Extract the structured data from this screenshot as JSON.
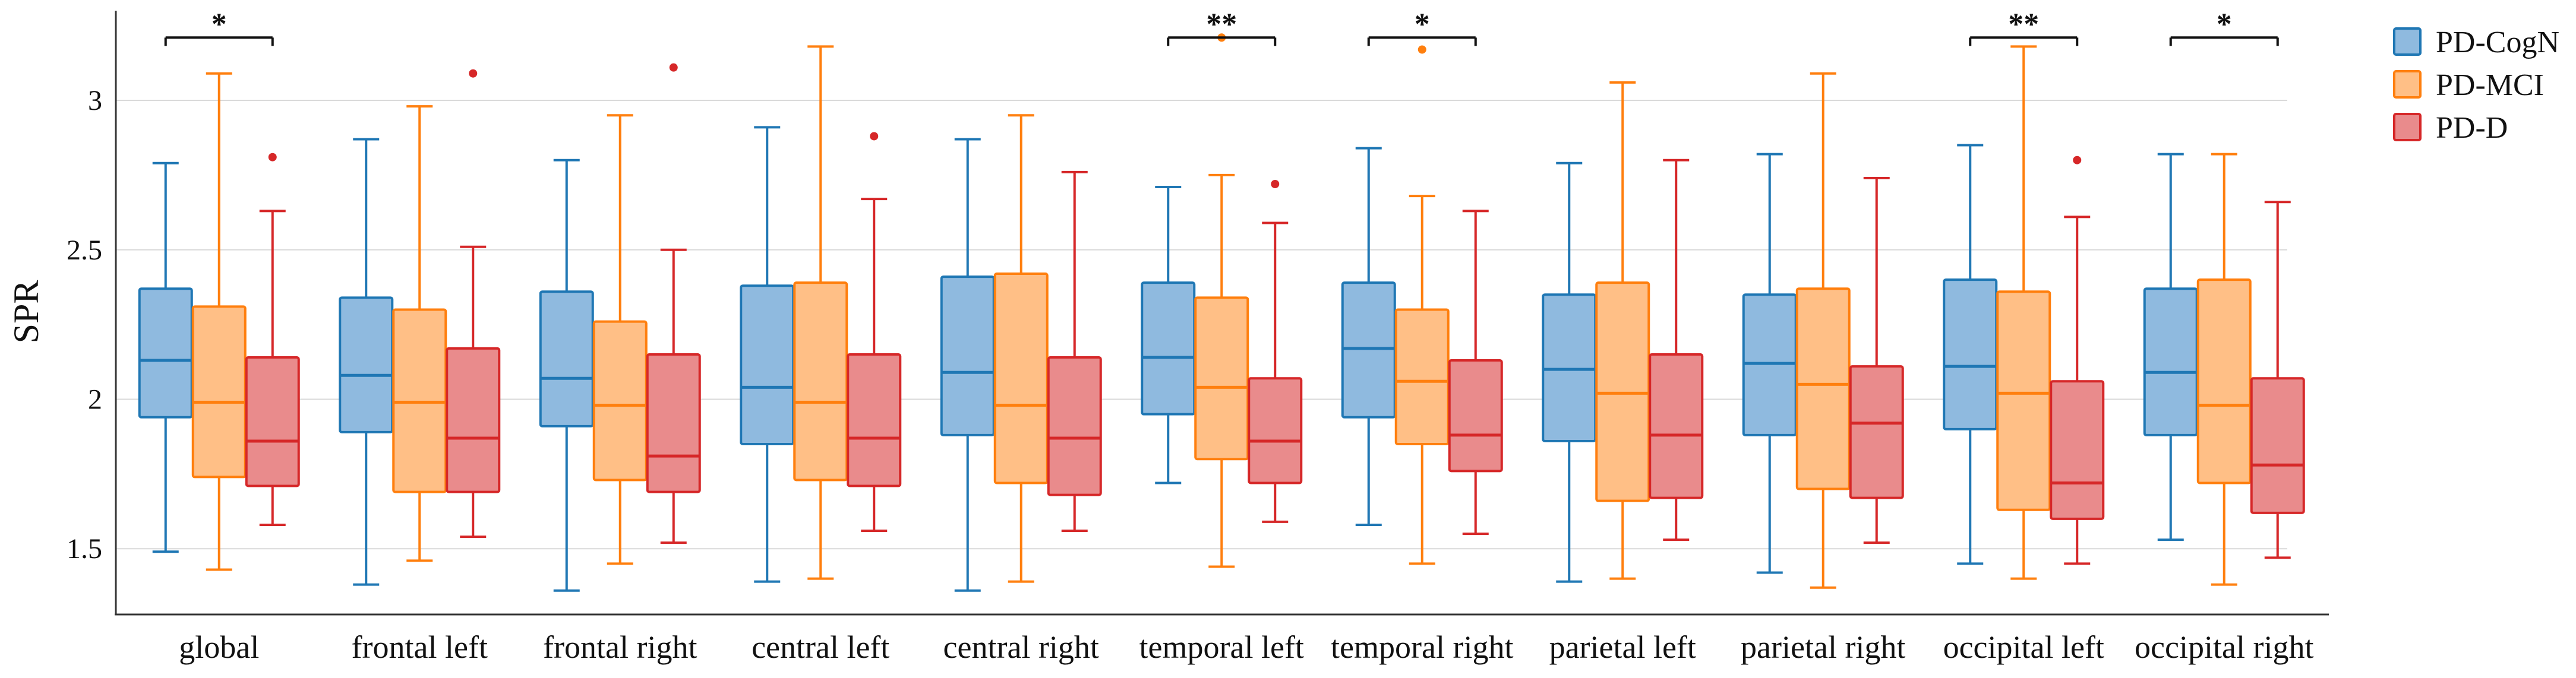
{
  "chart_data": {
    "type": "box",
    "title": "",
    "xlabel": "",
    "ylabel": "SPR",
    "ylim": [
      1.28,
      3.3
    ],
    "yticks": [
      1.5,
      2,
      2.5,
      3
    ],
    "ytick_labels": [
      "1.5",
      "2",
      "2.5",
      "3"
    ],
    "grid": "horizontal",
    "legend_position": "top-right",
    "categories": [
      "global",
      "frontal left",
      "frontal right",
      "central left",
      "central right",
      "temporal left",
      "temporal right",
      "parietal left",
      "parietal right",
      "occipital left",
      "occipital right"
    ],
    "series": [
      {
        "name": "PD-CogN",
        "color": "#1f77b4",
        "fill": "#8fbadf",
        "boxes": [
          {
            "whisker_low": 1.49,
            "q1": 1.94,
            "median": 2.13,
            "q3": 2.37,
            "whisker_high": 2.79,
            "outliers": []
          },
          {
            "whisker_low": 1.38,
            "q1": 1.89,
            "median": 2.08,
            "q3": 2.34,
            "whisker_high": 2.87,
            "outliers": []
          },
          {
            "whisker_low": 1.36,
            "q1": 1.91,
            "median": 2.07,
            "q3": 2.36,
            "whisker_high": 2.8,
            "outliers": []
          },
          {
            "whisker_low": 1.39,
            "q1": 1.85,
            "median": 2.04,
            "q3": 2.38,
            "whisker_high": 2.91,
            "outliers": []
          },
          {
            "whisker_low": 1.36,
            "q1": 1.88,
            "median": 2.09,
            "q3": 2.41,
            "whisker_high": 2.87,
            "outliers": []
          },
          {
            "whisker_low": 1.72,
            "q1": 1.95,
            "median": 2.14,
            "q3": 2.39,
            "whisker_high": 2.71,
            "outliers": []
          },
          {
            "whisker_low": 1.58,
            "q1": 1.94,
            "median": 2.17,
            "q3": 2.39,
            "whisker_high": 2.84,
            "outliers": []
          },
          {
            "whisker_low": 1.39,
            "q1": 1.86,
            "median": 2.1,
            "q3": 2.35,
            "whisker_high": 2.79,
            "outliers": []
          },
          {
            "whisker_low": 1.42,
            "q1": 1.88,
            "median": 2.12,
            "q3": 2.35,
            "whisker_high": 2.82,
            "outliers": []
          },
          {
            "whisker_low": 1.45,
            "q1": 1.9,
            "median": 2.11,
            "q3": 2.4,
            "whisker_high": 2.85,
            "outliers": []
          },
          {
            "whisker_low": 1.53,
            "q1": 1.88,
            "median": 2.09,
            "q3": 2.37,
            "whisker_high": 2.82,
            "outliers": []
          }
        ]
      },
      {
        "name": "PD-MCI",
        "color": "#ff7f0e",
        "fill": "#ffbf86",
        "boxes": [
          {
            "whisker_low": 1.43,
            "q1": 1.74,
            "median": 1.99,
            "q3": 2.31,
            "whisker_high": 3.09,
            "outliers": []
          },
          {
            "whisker_low": 1.46,
            "q1": 1.69,
            "median": 1.99,
            "q3": 2.3,
            "whisker_high": 2.98,
            "outliers": []
          },
          {
            "whisker_low": 1.45,
            "q1": 1.73,
            "median": 1.98,
            "q3": 2.26,
            "whisker_high": 2.95,
            "outliers": []
          },
          {
            "whisker_low": 1.4,
            "q1": 1.73,
            "median": 1.99,
            "q3": 2.39,
            "whisker_high": 3.18,
            "outliers": []
          },
          {
            "whisker_low": 1.39,
            "q1": 1.72,
            "median": 1.98,
            "q3": 2.42,
            "whisker_high": 2.95,
            "outliers": []
          },
          {
            "whisker_low": 1.44,
            "q1": 1.8,
            "median": 2.04,
            "q3": 2.34,
            "whisker_high": 2.75,
            "outliers": [
              3.21
            ]
          },
          {
            "whisker_low": 1.45,
            "q1": 1.85,
            "median": 2.06,
            "q3": 2.3,
            "whisker_high": 2.68,
            "outliers": [
              3.17
            ]
          },
          {
            "whisker_low": 1.4,
            "q1": 1.66,
            "median": 2.02,
            "q3": 2.39,
            "whisker_high": 3.06,
            "outliers": []
          },
          {
            "whisker_low": 1.37,
            "q1": 1.7,
            "median": 2.05,
            "q3": 2.37,
            "whisker_high": 3.09,
            "outliers": []
          },
          {
            "whisker_low": 1.4,
            "q1": 1.63,
            "median": 2.02,
            "q3": 2.36,
            "whisker_high": 3.18,
            "outliers": []
          },
          {
            "whisker_low": 1.38,
            "q1": 1.72,
            "median": 1.98,
            "q3": 2.4,
            "whisker_high": 2.82,
            "outliers": []
          }
        ]
      },
      {
        "name": "PD-D",
        "color": "#d62728",
        "fill": "#e98b8c",
        "boxes": [
          {
            "whisker_low": 1.58,
            "q1": 1.71,
            "median": 1.86,
            "q3": 2.14,
            "whisker_high": 2.63,
            "outliers": [
              2.81
            ]
          },
          {
            "whisker_low": 1.54,
            "q1": 1.69,
            "median": 1.87,
            "q3": 2.17,
            "whisker_high": 2.51,
            "outliers": [
              3.09
            ]
          },
          {
            "whisker_low": 1.52,
            "q1": 1.69,
            "median": 1.81,
            "q3": 2.15,
            "whisker_high": 2.5,
            "outliers": [
              3.11
            ]
          },
          {
            "whisker_low": 1.56,
            "q1": 1.71,
            "median": 1.87,
            "q3": 2.15,
            "whisker_high": 2.67,
            "outliers": [
              2.88
            ]
          },
          {
            "whisker_low": 1.56,
            "q1": 1.68,
            "median": 1.87,
            "q3": 2.14,
            "whisker_high": 2.76,
            "outliers": []
          },
          {
            "whisker_low": 1.59,
            "q1": 1.72,
            "median": 1.86,
            "q3": 2.07,
            "whisker_high": 2.59,
            "outliers": [
              2.72
            ]
          },
          {
            "whisker_low": 1.55,
            "q1": 1.76,
            "median": 1.88,
            "q3": 2.13,
            "whisker_high": 2.63,
            "outliers": []
          },
          {
            "whisker_low": 1.53,
            "q1": 1.67,
            "median": 1.88,
            "q3": 2.15,
            "whisker_high": 2.8,
            "outliers": []
          },
          {
            "whisker_low": 1.52,
            "q1": 1.67,
            "median": 1.92,
            "q3": 2.11,
            "whisker_high": 2.74,
            "outliers": []
          },
          {
            "whisker_low": 1.45,
            "q1": 1.6,
            "median": 1.72,
            "q3": 2.06,
            "whisker_high": 2.61,
            "outliers": [
              2.8
            ]
          },
          {
            "whisker_low": 1.47,
            "q1": 1.62,
            "median": 1.78,
            "q3": 2.07,
            "whisker_high": 2.66,
            "outliers": []
          }
        ]
      }
    ],
    "significance": [
      {
        "category": "global",
        "label": "*",
        "y": 3.21
      },
      {
        "category": "temporal left",
        "label": "**",
        "y": 3.21
      },
      {
        "category": "temporal right",
        "label": "*",
        "y": 3.21
      },
      {
        "category": "occipital left",
        "label": "**",
        "y": 3.21
      },
      {
        "category": "occipital right",
        "label": "*",
        "y": 3.21
      }
    ],
    "legend": [
      "PD-CogN",
      "PD-MCI",
      "PD-D"
    ]
  }
}
